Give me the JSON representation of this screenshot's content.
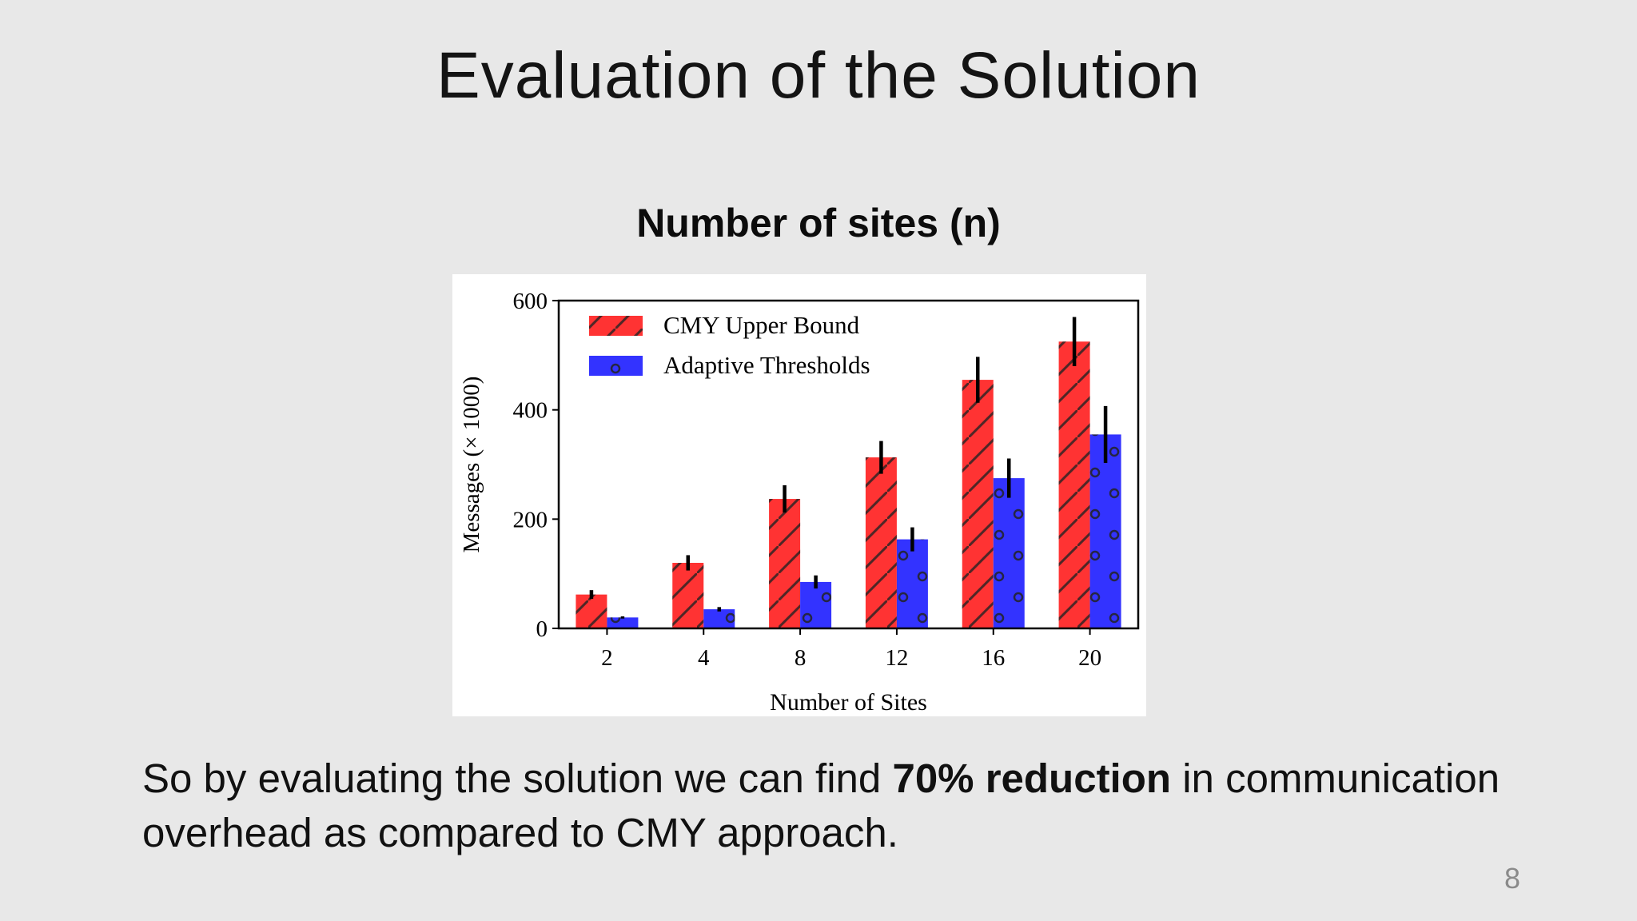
{
  "slide": {
    "title": "Evaluation of the Solution",
    "chart_heading": "Number of sites (n)",
    "text_part1": "So by evaluating the solution we can find ",
    "text_bold": "70% reduction",
    "text_part2": " in communication overhead as compared to CMY approach.",
    "page_number": "8"
  },
  "colors": {
    "cmy": "#ff3333",
    "adaptive": "#3333ff",
    "error_bar": "#000000"
  },
  "chart_data": {
    "type": "bar",
    "title": "",
    "xlabel": "Number of Sites",
    "ylabel": "Messages (× 1000)",
    "categories": [
      "2",
      "4",
      "8",
      "12",
      "16",
      "20"
    ],
    "ylim": [
      0,
      600
    ],
    "yticks": [
      0,
      200,
      400,
      600
    ],
    "legend_position": "top-left",
    "grid": false,
    "series": [
      {
        "name": "CMY Upper Bound",
        "values": [
          62,
          120,
          237,
          313,
          455,
          525
        ],
        "error": [
          8,
          14,
          25,
          30,
          42,
          45
        ],
        "hatch": "diagonal"
      },
      {
        "name": "Adaptive Thresholds",
        "values": [
          20,
          35,
          85,
          163,
          275,
          355
        ],
        "error": [
          2,
          4,
          12,
          22,
          36,
          52
        ],
        "hatch": "circles"
      }
    ]
  }
}
